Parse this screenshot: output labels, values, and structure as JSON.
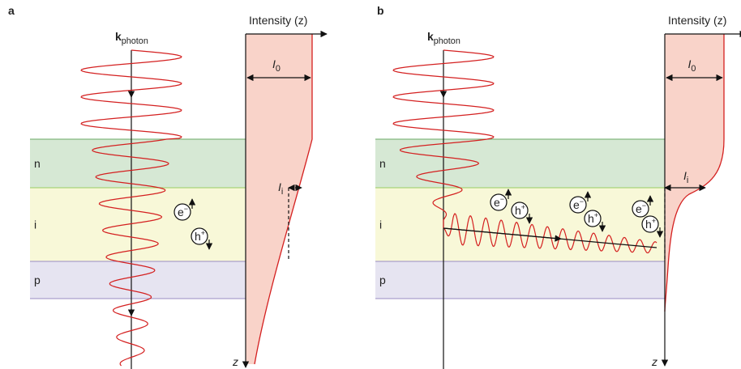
{
  "panels": [
    {
      "label": "a",
      "k_symbol": "k",
      "k_subscript": "photon",
      "intensity_label": "Intensity (z)",
      "i0_symbol": "I",
      "i0_subscript": "0",
      "ii_symbol": "I",
      "ii_subscript": "i",
      "layers": [
        "n",
        "i",
        "p"
      ],
      "electrons": [
        {
          "symbol": "e",
          "charge": "−"
        }
      ],
      "holes": [
        {
          "symbol": "h",
          "charge": "+"
        }
      ],
      "z_axis": "z"
    },
    {
      "label": "b",
      "k_symbol": "k",
      "k_subscript": "photon",
      "intensity_label": "Intensity (z)",
      "i0_symbol": "I",
      "i0_subscript": "0",
      "ii_symbol": "I",
      "ii_subscript": "i",
      "layers": [
        "n",
        "i",
        "p"
      ],
      "electrons": [
        {
          "symbol": "e",
          "charge": "−"
        },
        {
          "symbol": "e",
          "charge": "−"
        },
        {
          "symbol": "e",
          "charge": "−"
        }
      ],
      "holes": [
        {
          "symbol": "h",
          "charge": "+"
        },
        {
          "symbol": "h",
          "charge": "+"
        },
        {
          "symbol": "h",
          "charge": "+"
        }
      ],
      "z_axis": "z"
    }
  ]
}
